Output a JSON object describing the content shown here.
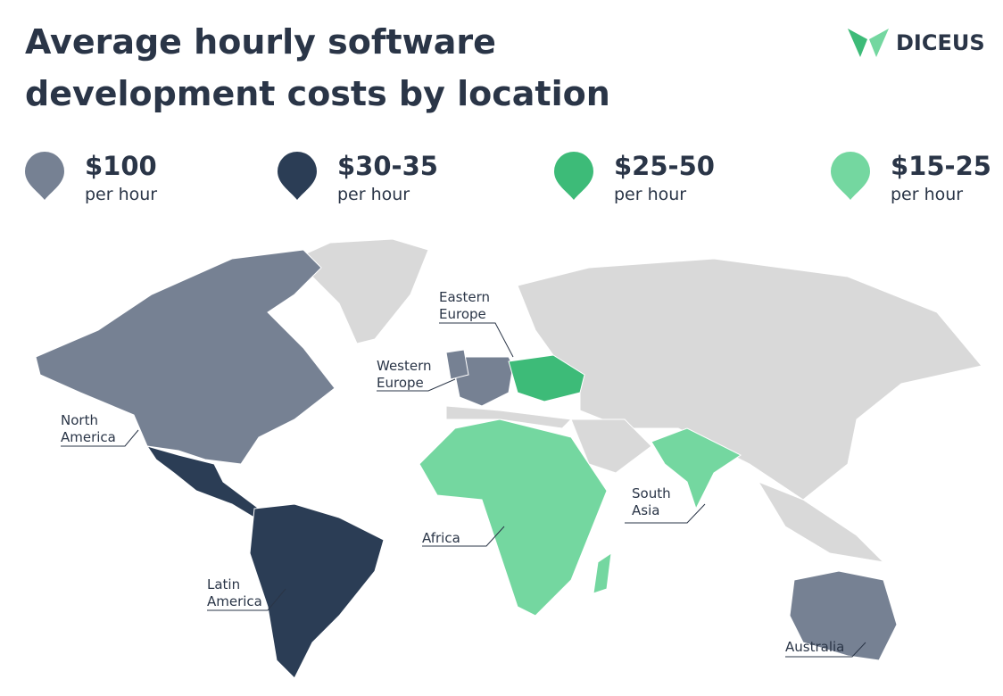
{
  "header": {
    "title": [
      "Average hourly software",
      "development costs by location"
    ],
    "brand": "DICEUS"
  },
  "legend": [
    {
      "price": "$100",
      "unit": "per hour",
      "color": "#768193"
    },
    {
      "price": "$30-35",
      "unit": "per hour",
      "color": "#2b3d55"
    },
    {
      "price": "$25-50",
      "unit": "per hour",
      "color": "#3dbb78"
    },
    {
      "price": "$15-25",
      "unit": "per hour",
      "color": "#74d7a0"
    }
  ],
  "regions": [
    {
      "label": [
        "North",
        "America"
      ]
    },
    {
      "label": [
        "Western",
        "Europe"
      ]
    },
    {
      "label": [
        "Eastern",
        "Europe"
      ]
    },
    {
      "label": [
        "Latin",
        "America"
      ]
    },
    {
      "label": [
        "Africa"
      ]
    },
    {
      "label": [
        "South",
        "Asia"
      ]
    },
    {
      "label": [
        "Australia"
      ]
    }
  ]
}
